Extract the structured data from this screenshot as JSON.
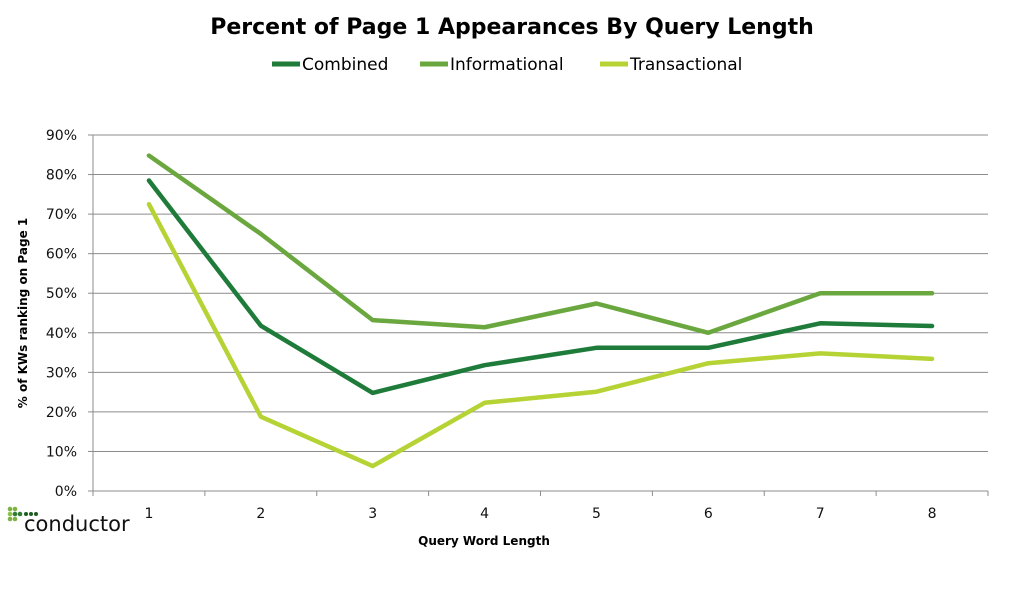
{
  "chart_data": {
    "type": "line",
    "title": "Percent of Page 1 Appearances By Query Length",
    "xlabel": "Query Word Length",
    "ylabel": "% of KWs ranking  on Page 1",
    "categories": [
      "1",
      "2",
      "3",
      "4",
      "5",
      "6",
      "7",
      "8"
    ],
    "ylim": [
      0,
      90
    ],
    "yticks": [
      "0%",
      "10%",
      "20%",
      "30%",
      "40%",
      "50%",
      "60%",
      "70%",
      "80%",
      "90%"
    ],
    "grid": true,
    "legend_position": "top",
    "series": [
      {
        "name": "Combined",
        "color": "#1e7b3a",
        "values": [
          78.5,
          41.8,
          24.8,
          31.8,
          36.2,
          36.2,
          42.4,
          41.7
        ]
      },
      {
        "name": "Informational",
        "color": "#6aa73e",
        "values": [
          84.8,
          65.0,
          43.2,
          41.4,
          47.4,
          40.0,
          50.0,
          50.0
        ]
      },
      {
        "name": "Transactional",
        "color": "#b5d334",
        "values": [
          72.5,
          18.8,
          6.3,
          22.3,
          25.1,
          32.3,
          34.8,
          33.4
        ]
      }
    ]
  },
  "logo": {
    "text": "conductor"
  }
}
